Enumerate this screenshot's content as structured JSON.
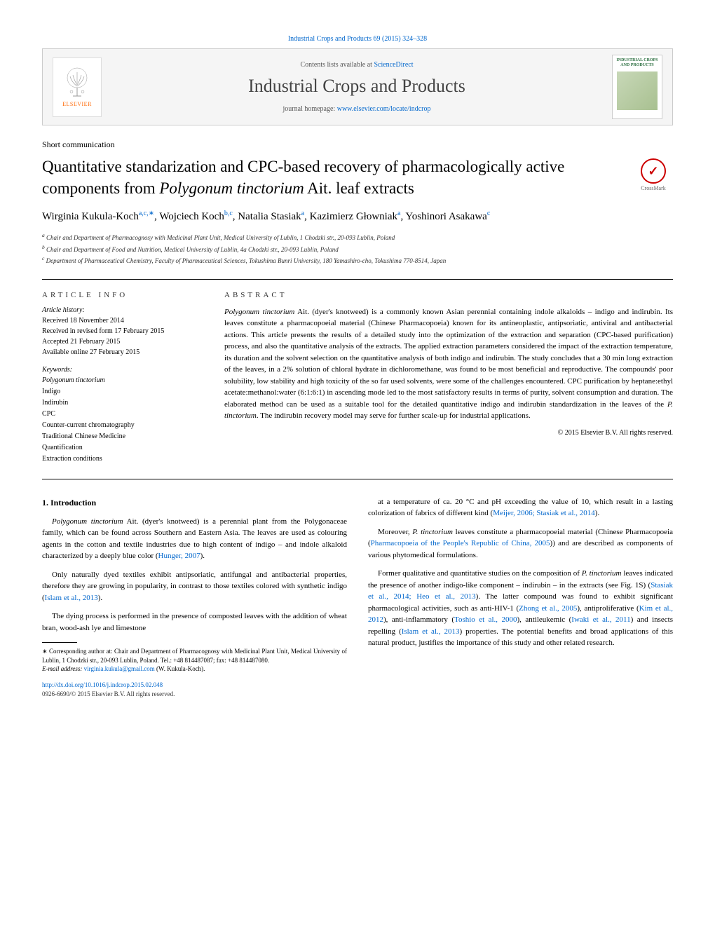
{
  "header": {
    "topLink": "Industrial Crops and Products 69 (2015) 324–328",
    "contentsText": "Contents lists available at ",
    "contentsLink": "ScienceDirect",
    "journalTitle": "Industrial Crops and Products",
    "homepagePrefix": "journal homepage: ",
    "homepageLink": "www.elsevier.com/locate/indcrop",
    "elsevierLabel": "ELSEVIER",
    "coverTitle": "INDUSTRIAL CROPS AND PRODUCTS"
  },
  "article": {
    "sectionLabel": "Short communication",
    "title": "Quantitative standarization and CPC-based recovery of pharmacologically active components from Polygonum tinctorium Ait. leaf extracts",
    "crossmarkLabel": "CrossMark",
    "authorsHtml": "Wirginia Kukula-Koch",
    "authors": [
      {
        "name": "Wirginia Kukula-Koch",
        "sup": "a,c,∗"
      },
      {
        "name": "Wojciech Koch",
        "sup": "b,c"
      },
      {
        "name": "Natalia Stasiak",
        "sup": "a"
      },
      {
        "name": "Kazimierz Głowniak",
        "sup": "a"
      },
      {
        "name": "Yoshinori Asakawa",
        "sup": "c"
      }
    ],
    "affiliations": [
      "a Chair and Department of Pharmacognosy with Medicinal Plant Unit, Medical University of Lublin, 1 Chodzki str., 20-093 Lublin, Poland",
      "b Chair and Department of Food and Nutrition, Medical University of Lublin, 4a Chodzki str., 20-093 Lublin, Poland",
      "c Department of Pharmaceutical Chemistry, Faculty of Pharmaceutical Sciences, Tokushima Bunri University, 180 Yamashiro-cho, Tokushima 770-8514, Japan"
    ]
  },
  "articleInfo": {
    "heading": "ARTICLE INFO",
    "historyHeading": "Article history:",
    "history": [
      "Received 18 November 2014",
      "Received in revised form 17 February 2015",
      "Accepted 21 February 2015",
      "Available online 27 February 2015"
    ],
    "keywordsHeading": "Keywords:",
    "keywords": [
      "Polygonum tinctorium",
      "Indigo",
      "Indirubin",
      "CPC",
      "Counter-current chromatography",
      "Traditional Chinese Medicine",
      "Quantification",
      "Extraction conditions"
    ]
  },
  "abstract": {
    "heading": "ABSTRACT",
    "text": "Polygonum tinctorium Ait. (dyer's knotweed) is a commonly known Asian perennial containing indole alkaloids – indigo and indirubin. Its leaves constitute a pharmacopoeial material (Chinese Pharmacopoeia) known for its antineoplastic, antipsoriatic, antiviral and antibacterial actions. This article presents the results of a detailed study into the optimization of the extraction and separation (CPC-based purification) process, and also the quantitative analysis of the extracts. The applied extraction parameters considered the impact of the extraction temperature, its duration and the solvent selection on the quantitative analysis of both indigo and indirubin. The study concludes that a 30 min long extraction of the leaves, in a 2% solution of chloral hydrate in dichloromethane, was found to be most beneficial and reproductive. The compounds' poor solubility, low stability and high toxicity of the so far used solvents, were some of the challenges encountered. CPC purification by heptane:ethyl acetate:methanol:water (6:1:6:1) in ascending mode led to the most satisfactory results in terms of purity, solvent consumption and duration. The elaborated method can be used as a suitable tool for the detailed quantitative indigo and indirubin standardization in the leaves of the P. tinctorium. The indirubin recovery model may serve for further scale-up for industrial applications.",
    "copyright": "© 2015 Elsevier B.V. All rights reserved."
  },
  "body": {
    "introHeading": "1. Introduction",
    "leftParas": [
      "Polygonum tinctorium Ait. (dyer's knotweed) is a perennial plant from the Polygonaceae family, which can be found across Southern and Eastern Asia. The leaves are used as colouring agents in the cotton and textile industries due to high content of indigo – and indole alkaloid characterized by a deeply blue color (Hunger, 2007).",
      "Only naturally dyed textiles exhibit antipsoriatic, antifungal and antibacterial properties, therefore they are growing in popularity, in contrast to those textiles colored with synthetic indigo (Islam et al., 2013).",
      "The dying process is performed in the presence of composted leaves with the addition of wheat bran, wood-ash lye and limestone"
    ],
    "rightParas": [
      "at a temperature of ca. 20 °C and pH exceeding the value of 10, which result in a lasting colorization of fabrics of different kind (Meijer, 2006; Stasiak et al., 2014).",
      "Moreover, P. tinctorium leaves constitute a pharmacopoeial material (Chinese Pharmacopoeia (Pharmacopoeia of the People's Republic of China, 2005)) and are described as components of various phytomedical formulations.",
      "Former qualitative and quantitative studies on the composition of P. tinctorium leaves indicated the presence of another indigo-like component – indirubin – in the extracts (see Fig. 1S) (Stasiak et al., 2014; Heo et al., 2013). The latter compound was found to exhibit significant pharmacological activities, such as anti-HIV-1 (Zhong et al., 2005), antiproliferative (Kim et al., 2012), anti-inflammatory (Toshio et al., 2000), antileukemic (Iwaki et al., 2011) and insects repelling (Islam et al., 2013) properties. The potential benefits and broad applications of this natural product, justifies the importance of this study and other related research."
    ]
  },
  "footnotes": {
    "corr": "∗ Corresponding author at: Chair and Department of Pharmacognosy with Medicinal Plant Unit, Medical University of Lublin, 1 Chodzki str., 20-093 Lublin, Poland. Tel.: +48 814487087; fax: +48 814487080.",
    "emailLabel": "E-mail address: ",
    "email": "virginia.kukula@gmail.com",
    "emailSuffix": " (W. Kukula-Koch).",
    "doi": "http://dx.doi.org/10.1016/j.indcrop.2015.02.048",
    "pubLine": "0926-6690/© 2015 Elsevier B.V. All rights reserved."
  },
  "colors": {
    "link": "#0066cc",
    "elsevierOrange": "#ff6600",
    "coverGreen": "#2a6e3f",
    "crossmarkRed": "#cc0000"
  }
}
